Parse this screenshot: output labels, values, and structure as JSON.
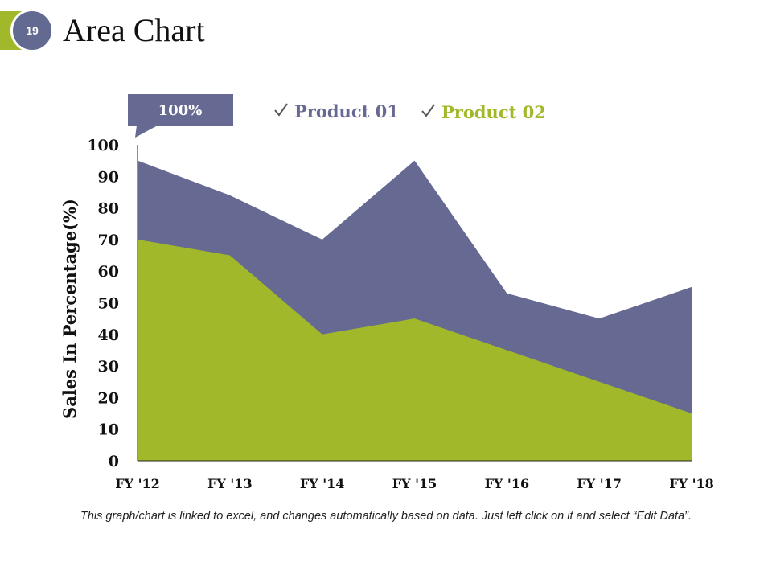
{
  "slide": {
    "number": "19",
    "title": "Area Chart",
    "footer_note": "This graph/chart is linked to excel, and changes automatically based on data. Just left click on it and select “Edit Data”.",
    "accent_color": "#a2b82b",
    "badge_color": "#636a91"
  },
  "chart_data": {
    "type": "area",
    "stacked": true,
    "categories": [
      "FY '12",
      "FY '13",
      "FY '14",
      "FY '15",
      "FY '16",
      "FY '17",
      "FY '18"
    ],
    "series": [
      {
        "name": "Product 01",
        "values": [
          25,
          19,
          30,
          50,
          18,
          20,
          40
        ],
        "color": "#666a92"
      },
      {
        "name": "Product 02",
        "values": [
          70,
          65,
          40,
          45,
          35,
          25,
          15
        ],
        "color": "#a2b82b"
      }
    ],
    "ylabel": "Sales In Percentage(%)",
    "xlabel": "",
    "ylim": [
      0,
      100
    ],
    "ytick_step": 10,
    "callout": "100%",
    "legend_check_icon": "checkmark-icon",
    "legend_position": "top"
  }
}
